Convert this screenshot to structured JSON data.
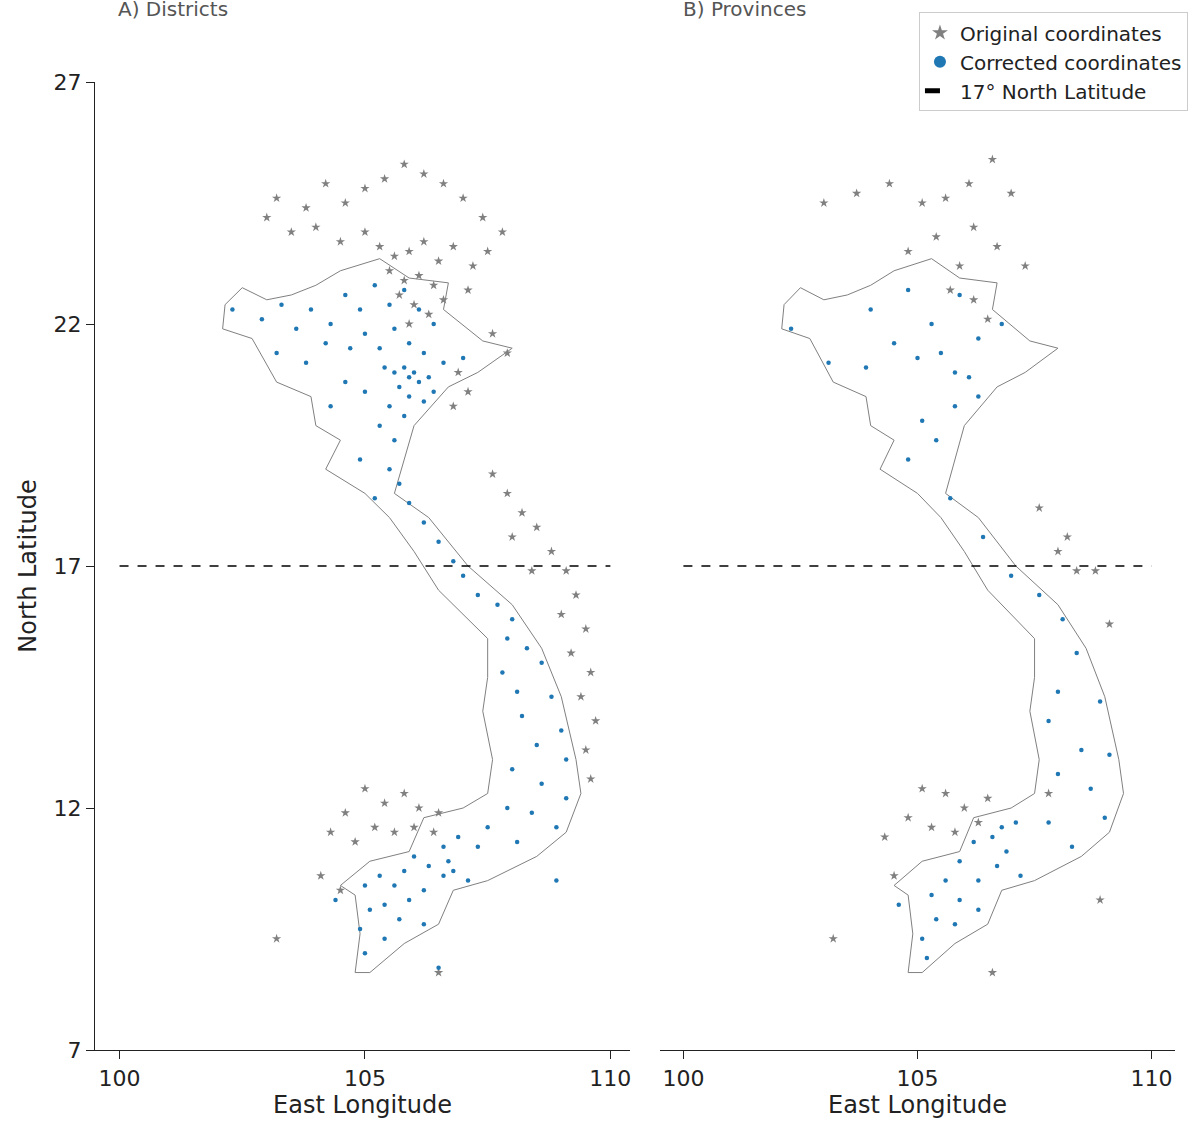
{
  "chart_data": [
    {
      "type": "scatter",
      "title": "A) Districts",
      "x_label": "East Longitude",
      "y_label": "North Latitude",
      "xlim": [
        99.5,
        110.4
      ],
      "ylim": [
        7,
        27
      ],
      "xticks": [
        100,
        105,
        110
      ],
      "yticks": [
        7,
        12,
        17,
        22,
        27
      ],
      "grid": false,
      "series": [
        {
          "type": "line",
          "color": "#808080",
          "line_style": "solid",
          "x": [
            102.15,
            102.5,
            103.0,
            103.5,
            104.0,
            104.5,
            105.3,
            105.9,
            106.7,
            106.6,
            107.4,
            108.0,
            107.3,
            106.7,
            106.0,
            105.8,
            105.6,
            106.3,
            107.1,
            108.0,
            108.6,
            109.0,
            109.3,
            109.4,
            109.1,
            108.5,
            107.5,
            106.8,
            106.5,
            105.8,
            105.1,
            104.8,
            104.9,
            104.8,
            104.5,
            105.1,
            105.9,
            106.2,
            107.0,
            107.5,
            107.6,
            107.4,
            107.5,
            107.5,
            107.0,
            106.5,
            106.0,
            105.5,
            105.0,
            104.2,
            104.5,
            104.0,
            103.9,
            103.2,
            102.7,
            102.1,
            102.15
          ],
          "y": [
            22.4,
            22.75,
            22.5,
            22.6,
            22.8,
            23.1,
            23.35,
            22.95,
            22.85,
            22.3,
            21.65,
            21.5,
            21.0,
            20.7,
            19.9,
            19.2,
            18.5,
            18.0,
            17.0,
            16.2,
            15.3,
            14.3,
            13.0,
            12.3,
            11.5,
            11.0,
            10.5,
            10.3,
            9.6,
            9.2,
            8.6,
            8.6,
            9.4,
            10.2,
            10.4,
            10.9,
            11.1,
            11.8,
            12.0,
            12.3,
            13.0,
            14.0,
            14.7,
            15.5,
            16.0,
            16.5,
            17.3,
            18.0,
            18.5,
            19.0,
            19.6,
            19.9,
            20.5,
            20.8,
            21.7,
            21.9,
            22.4
          ]
        },
        {
          "name": "Original coordinates",
          "type": "scatter",
          "color": "#808080",
          "marker": "star",
          "x": [
            103.2,
            103.8,
            104.2,
            104.6,
            105.0,
            105.4,
            105.8,
            106.2,
            106.6,
            107.0,
            107.4,
            107.8,
            103.0,
            103.5,
            104.0,
            104.5,
            105.0,
            105.3,
            105.6,
            105.9,
            106.2,
            106.5,
            106.8,
            107.2,
            107.5,
            105.5,
            105.8,
            106.1,
            106.4,
            105.7,
            106.0,
            106.3,
            105.9,
            106.6,
            107.1,
            107.6,
            107.9,
            106.9,
            107.1,
            106.8,
            107.6,
            107.9,
            108.2,
            108.5,
            108.0,
            108.8,
            109.1,
            108.4,
            109.3,
            109.0,
            109.5,
            109.2,
            109.6,
            109.4,
            109.7,
            109.5,
            109.6,
            105.0,
            105.4,
            105.8,
            106.1,
            106.5,
            104.6,
            104.3,
            104.8,
            105.2,
            105.6,
            106.0,
            106.4,
            104.1,
            104.5,
            103.2,
            106.5
          ],
          "y": [
            24.6,
            24.4,
            24.9,
            24.5,
            24.8,
            25.0,
            25.3,
            25.1,
            24.9,
            24.6,
            24.2,
            23.9,
            24.2,
            23.9,
            24.0,
            23.7,
            23.9,
            23.6,
            23.4,
            23.5,
            23.7,
            23.3,
            23.6,
            23.2,
            23.5,
            23.1,
            22.9,
            23.0,
            22.8,
            22.6,
            22.4,
            22.2,
            22.0,
            22.5,
            22.7,
            21.8,
            21.4,
            21.0,
            20.6,
            20.3,
            18.9,
            18.5,
            18.1,
            17.8,
            17.6,
            17.3,
            16.9,
            16.9,
            16.4,
            16.0,
            15.7,
            15.2,
            14.8,
            14.3,
            13.8,
            13.2,
            12.6,
            12.4,
            12.1,
            12.3,
            12.0,
            11.9,
            11.9,
            11.5,
            11.3,
            11.6,
            11.5,
            11.6,
            11.5,
            10.6,
            10.3,
            9.3,
            8.6
          ]
        },
        {
          "name": "Corrected coordinates",
          "type": "scatter",
          "color": "#1f77b4",
          "marker": "circle",
          "x": [
            102.3,
            102.9,
            103.3,
            103.6,
            103.9,
            104.3,
            104.6,
            104.9,
            105.2,
            105.5,
            105.8,
            106.1,
            106.4,
            103.2,
            103.8,
            104.2,
            104.7,
            105.0,
            105.3,
            105.6,
            105.9,
            106.2,
            106.6,
            107.0,
            105.4,
            105.6,
            105.8,
            105.9,
            106.0,
            106.1,
            106.3,
            106.4,
            105.7,
            105.9,
            106.2,
            105.5,
            105.8,
            104.6,
            105.0,
            104.3,
            105.3,
            105.6,
            104.9,
            105.5,
            105.7,
            105.2,
            105.9,
            106.2,
            106.5,
            106.8,
            107.0,
            107.3,
            107.7,
            108.0,
            107.9,
            108.3,
            108.6,
            107.8,
            108.1,
            108.8,
            108.2,
            109.0,
            108.5,
            109.1,
            108.0,
            108.6,
            109.1,
            107.9,
            108.4,
            108.9,
            107.5,
            108.1,
            107.3,
            106.9,
            106.6,
            106.7,
            106.8,
            106.6,
            107.1,
            106.3,
            106.0,
            105.8,
            106.2,
            105.6,
            105.3,
            105.9,
            105.4,
            105.7,
            105.1,
            106.2,
            105.4,
            105.0,
            104.9,
            104.4,
            105.0,
            106.5,
            108.9
          ],
          "y": [
            22.3,
            22.1,
            22.4,
            21.9,
            22.3,
            22.0,
            22.6,
            22.3,
            22.8,
            22.4,
            22.7,
            22.3,
            22.0,
            21.4,
            21.2,
            21.6,
            21.5,
            21.8,
            21.5,
            21.9,
            21.6,
            21.4,
            21.2,
            21.3,
            21.1,
            21.0,
            21.1,
            20.9,
            21.0,
            20.8,
            20.9,
            20.6,
            20.7,
            20.5,
            20.4,
            20.3,
            20.1,
            20.8,
            20.6,
            20.3,
            19.9,
            19.6,
            19.2,
            19.0,
            18.7,
            18.4,
            18.3,
            17.9,
            17.5,
            17.1,
            16.8,
            16.4,
            16.2,
            15.9,
            15.5,
            15.3,
            15.0,
            14.8,
            14.4,
            14.3,
            13.9,
            13.6,
            13.3,
            13.0,
            12.8,
            12.5,
            12.2,
            12.0,
            11.9,
            11.6,
            11.6,
            11.3,
            11.2,
            11.4,
            11.2,
            10.9,
            10.7,
            10.6,
            10.5,
            10.8,
            11.0,
            10.7,
            10.3,
            10.4,
            10.6,
            10.1,
            10.0,
            9.7,
            9.9,
            9.6,
            9.3,
            9.0,
            9.5,
            10.1,
            10.4,
            8.7,
            10.5
          ]
        },
        {
          "name": "17° North Latitude",
          "type": "line",
          "color": "#000000",
          "line_style": "dashed",
          "x": [
            100,
            110
          ],
          "y": [
            17,
            17
          ]
        }
      ]
    },
    {
      "type": "scatter",
      "title": "B) Provinces",
      "x_label": "East Longitude",
      "xlim": [
        99.5,
        110.5
      ],
      "ylim": [
        7,
        27
      ],
      "xticks": [
        100,
        105,
        110
      ],
      "yticks": [
        7,
        12,
        17,
        22,
        27
      ],
      "grid": false,
      "tick_labels": "x",
      "legend": "upper right",
      "series": [
        {
          "type": "line",
          "color": "#808080",
          "line_style": "solid",
          "x": [
            102.15,
            102.5,
            103.0,
            103.5,
            104.0,
            104.5,
            105.3,
            105.9,
            106.7,
            106.6,
            107.4,
            108.0,
            107.3,
            106.7,
            106.0,
            105.8,
            105.6,
            106.3,
            107.1,
            108.0,
            108.6,
            109.0,
            109.3,
            109.4,
            109.1,
            108.5,
            107.5,
            106.8,
            106.5,
            105.8,
            105.1,
            104.8,
            104.9,
            104.8,
            104.5,
            105.1,
            105.9,
            106.2,
            107.0,
            107.5,
            107.6,
            107.4,
            107.5,
            107.5,
            107.0,
            106.5,
            106.0,
            105.5,
            105.0,
            104.2,
            104.5,
            104.0,
            103.9,
            103.2,
            102.7,
            102.1,
            102.15
          ],
          "y": [
            22.4,
            22.75,
            22.5,
            22.6,
            22.8,
            23.1,
            23.35,
            22.95,
            22.85,
            22.3,
            21.65,
            21.5,
            21.0,
            20.7,
            19.9,
            19.2,
            18.5,
            18.0,
            17.0,
            16.2,
            15.3,
            14.3,
            13.0,
            12.3,
            11.5,
            11.0,
            10.5,
            10.3,
            9.6,
            9.2,
            8.6,
            8.6,
            9.4,
            10.2,
            10.4,
            10.9,
            11.1,
            11.8,
            12.0,
            12.3,
            13.0,
            14.0,
            14.7,
            15.5,
            16.0,
            16.5,
            17.3,
            18.0,
            18.5,
            19.0,
            19.6,
            19.9,
            20.5,
            20.8,
            21.7,
            21.9,
            22.4
          ]
        },
        {
          "name": "Original coordinates",
          "type": "scatter",
          "color": "#808080",
          "marker": "star",
          "x": [
            103.0,
            103.7,
            104.4,
            105.1,
            105.6,
            106.1,
            106.6,
            107.0,
            106.2,
            105.4,
            104.8,
            106.7,
            107.3,
            105.9,
            105.7,
            106.2,
            106.5,
            107.6,
            108.2,
            108.0,
            108.8,
            109.1,
            108.4,
            105.1,
            105.6,
            106.0,
            106.5,
            104.8,
            105.3,
            105.8,
            106.3,
            104.3,
            107.8,
            108.9,
            103.2,
            106.6,
            104.5
          ],
          "y": [
            24.5,
            24.7,
            24.9,
            24.5,
            24.6,
            24.9,
            25.4,
            24.7,
            24.0,
            23.8,
            23.5,
            23.6,
            23.2,
            23.2,
            22.7,
            22.5,
            22.1,
            18.2,
            17.6,
            17.3,
            16.9,
            15.8,
            16.9,
            12.4,
            12.3,
            12.0,
            12.2,
            11.8,
            11.6,
            11.5,
            11.7,
            11.4,
            12.3,
            10.1,
            9.3,
            8.6,
            10.6
          ]
        },
        {
          "name": "Corrected coordinates",
          "type": "scatter",
          "color": "#1f77b4",
          "marker": "circle",
          "x": [
            102.3,
            103.1,
            104.0,
            104.8,
            105.3,
            105.9,
            106.3,
            106.8,
            103.9,
            104.5,
            105.0,
            105.5,
            105.8,
            106.1,
            106.3,
            105.8,
            105.1,
            105.4,
            104.8,
            105.7,
            106.4,
            107.0,
            107.6,
            108.1,
            108.4,
            108.0,
            108.9,
            107.8,
            108.5,
            109.1,
            108.0,
            108.7,
            109.0,
            107.8,
            108.3,
            107.1,
            106.6,
            106.9,
            106.7,
            107.2,
            106.2,
            105.9,
            106.3,
            105.6,
            105.3,
            105.9,
            106.3,
            105.4,
            105.8,
            105.1,
            105.2,
            104.6,
            106.8
          ],
          "y": [
            21.9,
            21.2,
            22.3,
            22.7,
            22.0,
            22.6,
            21.7,
            22.0,
            21.1,
            21.6,
            21.3,
            21.4,
            21.0,
            20.9,
            20.5,
            20.3,
            20.0,
            19.6,
            19.2,
            18.4,
            17.6,
            16.8,
            16.4,
            15.9,
            15.2,
            14.4,
            14.2,
            13.8,
            13.2,
            13.1,
            12.7,
            12.4,
            11.8,
            11.7,
            11.2,
            11.7,
            11.4,
            11.1,
            10.8,
            10.6,
            11.3,
            10.9,
            10.5,
            10.5,
            10.2,
            10.1,
            9.9,
            9.7,
            9.6,
            9.3,
            8.9,
            10.0,
            11.6
          ]
        },
        {
          "name": "17° North Latitude",
          "type": "line",
          "color": "#000000",
          "line_style": "dashed",
          "x": [
            100,
            110
          ],
          "y": [
            17,
            17
          ]
        }
      ]
    }
  ]
}
